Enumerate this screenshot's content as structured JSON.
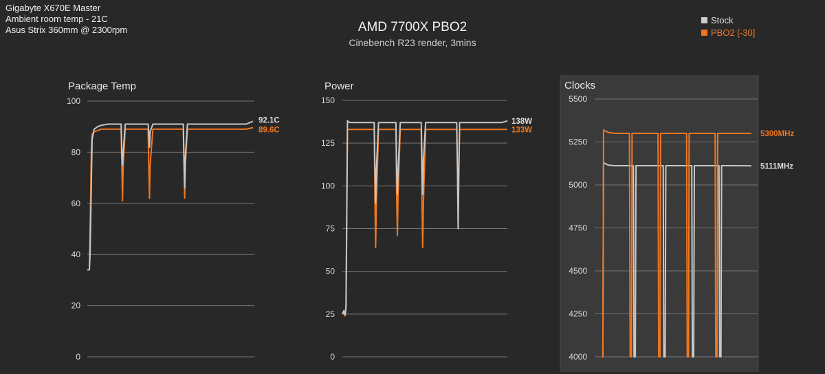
{
  "info_lines": [
    "Gigabyte X670E Master",
    "Ambient room temp - 21C",
    "Asus Strix 360mm @ 2300rpm"
  ],
  "title": "AMD 7700X PBO2",
  "subtitle": "Cinebench R23 render, 3mins",
  "legend": [
    {
      "label": "Stock",
      "color": "#cfcfcf"
    },
    {
      "label": "PBO2 [-30]",
      "color": "#ee7722"
    }
  ],
  "colors": {
    "stock": "#c8c8c8",
    "pbo": "#ee7722",
    "grid": "#777777",
    "background": "#282828",
    "highlight_panel": "#3a3a3a"
  },
  "chart_data": [
    {
      "type": "line",
      "title": "Package Temp",
      "ylim": [
        0,
        100
      ],
      "yticks": [
        0,
        20,
        40,
        60,
        80,
        100
      ],
      "highlighted": false,
      "end_labels": {
        "stock": "92.1C",
        "pbo": "89.6C"
      },
      "series": [
        {
          "name": "Stock",
          "x": [
            0,
            2,
            3,
            4,
            5,
            6,
            7,
            10,
            15,
            20,
            30,
            40,
            49,
            50,
            51,
            52,
            55,
            60,
            70,
            80,
            88,
            89,
            90,
            91,
            95,
            100,
            110,
            120,
            130,
            139,
            140,
            141,
            142,
            145,
            150,
            160,
            170,
            180,
            190,
            200,
            210,
            220,
            230,
            240
          ],
          "y": [
            34,
            34,
            34,
            40,
            55,
            70,
            85,
            89,
            90,
            90.5,
            91,
            91,
            91,
            80,
            75,
            80,
            91,
            91,
            91,
            91,
            91,
            88,
            82,
            88,
            91,
            91,
            91,
            91,
            91,
            91,
            78,
            66,
            78,
            91,
            91,
            91,
            91,
            91,
            91,
            91,
            91,
            91,
            91,
            92.1
          ]
        },
        {
          "name": "PBO2 [-30]",
          "x": [
            0,
            2,
            3,
            4,
            5,
            6,
            7,
            10,
            15,
            20,
            30,
            40,
            49,
            50,
            51,
            52,
            55,
            60,
            70,
            80,
            88,
            89,
            90,
            91,
            95,
            100,
            110,
            120,
            130,
            139,
            140,
            141,
            142,
            145,
            150,
            160,
            170,
            180,
            190,
            200,
            210,
            220,
            230,
            240
          ],
          "y": [
            34,
            34,
            34,
            50,
            65,
            82,
            87,
            88,
            88.5,
            89,
            89,
            89,
            89,
            75,
            61,
            75,
            89,
            89,
            89,
            89,
            89,
            75,
            62,
            75,
            89,
            89,
            89,
            89,
            89,
            89,
            75,
            62,
            75,
            89,
            89,
            89,
            89,
            89,
            89,
            89,
            89,
            89,
            89,
            89.6
          ]
        }
      ]
    },
    {
      "type": "line",
      "title": "Power",
      "ylim": [
        0,
        150
      ],
      "yticks": [
        0,
        25,
        50,
        75,
        100,
        125,
        150
      ],
      "highlighted": false,
      "end_labels": {
        "stock": "138W",
        "pbo": "133W"
      },
      "series": [
        {
          "name": "Stock",
          "x": [
            0,
            2,
            3,
            4,
            5,
            6,
            7,
            10,
            20,
            30,
            40,
            44,
            45,
            46,
            47,
            50,
            60,
            70,
            74,
            75,
            76,
            77,
            80,
            90,
            100,
            109,
            110,
            111,
            112,
            115,
            125,
            135,
            145,
            150,
            158,
            159,
            160,
            161,
            162,
            165,
            180,
            200,
            215,
            220,
            228
          ],
          "y": [
            25,
            27,
            25,
            25,
            30,
            80,
            138,
            137,
            137,
            137,
            137,
            137,
            110,
            90,
            110,
            137,
            137,
            137,
            137,
            110,
            95,
            110,
            137,
            137,
            137,
            137,
            115,
            95,
            115,
            137,
            137,
            137,
            137,
            137,
            137,
            110,
            75,
            110,
            137,
            137,
            137,
            137,
            137,
            137,
            138
          ]
        },
        {
          "name": "PBO2 [-30]",
          "x": [
            0,
            2,
            3,
            4,
            5,
            6,
            7,
            10,
            20,
            30,
            40,
            44,
            45,
            46,
            47,
            50,
            60,
            70,
            74,
            75,
            76,
            77,
            80,
            90,
            100,
            109,
            110,
            111,
            112,
            115,
            125,
            135,
            145,
            150,
            158,
            159,
            160,
            161,
            162,
            165,
            180,
            200,
            215,
            220,
            228
          ],
          "y": [
            25,
            26,
            24,
            24,
            30,
            75,
            133,
            133,
            133,
            133,
            133,
            133,
            90,
            64,
            90,
            133,
            133,
            133,
            133,
            95,
            71,
            95,
            133,
            133,
            133,
            133,
            90,
            64,
            90,
            133,
            133,
            133,
            133,
            133,
            133,
            110,
            95,
            110,
            133,
            133,
            133,
            133,
            133,
            133,
            133
          ]
        }
      ]
    },
    {
      "type": "line",
      "title": "Clocks",
      "ylim": [
        4000,
        5500
      ],
      "yticks": [
        4000,
        4250,
        4500,
        4750,
        5000,
        5250,
        5500
      ],
      "highlighted": true,
      "end_labels": {
        "stock": "5111MHz",
        "pbo": "5300MHz"
      },
      "series": [
        {
          "name": "Stock",
          "x": [
            0,
            0.5,
            1,
            2,
            5,
            10,
            15,
            20,
            24,
            24.5,
            25,
            25.5,
            26,
            40,
            47,
            47.5,
            48,
            48.5,
            49,
            60,
            69,
            69.5,
            70,
            70.5,
            71,
            80,
            90,
            90.5,
            91,
            91.5,
            92,
            105,
            115
          ],
          "y": [
            4000,
            4000,
            5130,
            5125,
            5115,
            5112,
            5112,
            5112,
            5112,
            4000,
            4000,
            4000,
            5112,
            5112,
            5112,
            4000,
            4000,
            4000,
            5112,
            5112,
            5112,
            4000,
            4000,
            4000,
            5112,
            5112,
            5112,
            4000,
            4000,
            4000,
            5112,
            5112,
            5111
          ]
        },
        {
          "name": "PBO2 [-30]",
          "x": [
            0,
            0.5,
            1,
            2,
            5,
            10,
            15,
            20,
            21,
            21.5,
            22,
            22.5,
            23,
            40,
            43,
            43.5,
            44,
            44.5,
            45,
            60,
            65,
            65.5,
            66,
            66.5,
            67,
            80,
            87,
            87.5,
            88,
            88.5,
            89,
            105,
            115
          ],
          "y": [
            4000,
            4000,
            5320,
            5315,
            5305,
            5300,
            5300,
            5300,
            5300,
            4000,
            4000,
            4000,
            5300,
            5300,
            5300,
            4000,
            4000,
            4000,
            5300,
            5300,
            5300,
            4000,
            4000,
            4000,
            5300,
            5300,
            5300,
            4000,
            4000,
            4000,
            5300,
            5300,
            5300
          ]
        }
      ]
    }
  ]
}
